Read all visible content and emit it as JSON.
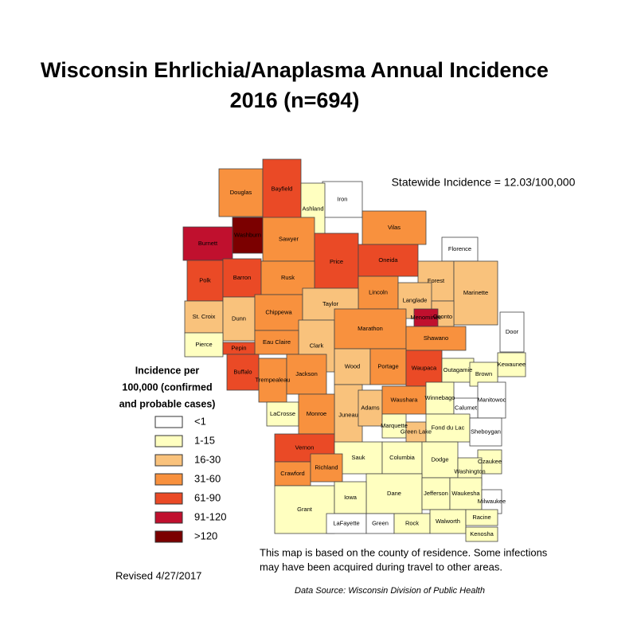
{
  "title": [
    "Wisconsin Ehrlichia/Anaplasma Annual Incidence",
    "2016 (n=694)"
  ],
  "statewide": "Statewide Incidence = 12.03/100,000",
  "legend": {
    "title": [
      "Incidence per",
      "100,000 (confirmed",
      "and probable cases)"
    ],
    "items": [
      {
        "label": "<1",
        "color": "#ffffff"
      },
      {
        "label": "1-15",
        "color": "#ffffc0"
      },
      {
        "label": "16-30",
        "color": "#f9c27c"
      },
      {
        "label": "31-60",
        "color": "#f8913e"
      },
      {
        "label": "61-90",
        "color": "#ea4a26"
      },
      {
        "label": "91-120",
        "color": "#c0102e"
      },
      {
        "label": ">120",
        "color": "#7b0000"
      }
    ]
  },
  "counties": [
    {
      "name": "Douglas",
      "class": 3
    },
    {
      "name": "Bayfield",
      "class": 4
    },
    {
      "name": "Iron",
      "class": 0
    },
    {
      "name": "Ashland",
      "class": 1
    },
    {
      "name": "Washburn",
      "class": 6
    },
    {
      "name": "Sawyer",
      "class": 3
    },
    {
      "name": "Burnett",
      "class": 5
    },
    {
      "name": "Price",
      "class": 4
    },
    {
      "name": "Vilas",
      "class": 3
    },
    {
      "name": "Oneida",
      "class": 4
    },
    {
      "name": "Florence",
      "class": 0
    },
    {
      "name": "Forest",
      "class": 2
    },
    {
      "name": "Marinette",
      "class": 2
    },
    {
      "name": "Polk",
      "class": 4
    },
    {
      "name": "Barron",
      "class": 4
    },
    {
      "name": "Rusk",
      "class": 3
    },
    {
      "name": "Lincoln",
      "class": 3
    },
    {
      "name": "Langlade",
      "class": 2
    },
    {
      "name": "Oconto",
      "class": 2
    },
    {
      "name": "St. Croix",
      "class": 2
    },
    {
      "name": "Dunn",
      "class": 2
    },
    {
      "name": "Chippewa",
      "class": 3
    },
    {
      "name": "Taylor",
      "class": 2
    },
    {
      "name": "Menominee",
      "class": 5
    },
    {
      "name": "Clark",
      "class": 2
    },
    {
      "name": "Marathon",
      "class": 3
    },
    {
      "name": "Pierce",
      "class": 1
    },
    {
      "name": "Eau Claire",
      "class": 3
    },
    {
      "name": "Shawano",
      "class": 3
    },
    {
      "name": "Door",
      "class": 0
    },
    {
      "name": "Pepin",
      "class": 4
    },
    {
      "name": "Buffalo",
      "class": 4
    },
    {
      "name": "Wood",
      "class": 2
    },
    {
      "name": "Portage",
      "class": 3
    },
    {
      "name": "Waupaca",
      "class": 4
    },
    {
      "name": "Kewaunee",
      "class": 1
    },
    {
      "name": "Outagamie",
      "class": 1
    },
    {
      "name": "Brown",
      "class": 1
    },
    {
      "name": "Trempealeau",
      "class": 3
    },
    {
      "name": "Jackson",
      "class": 3
    },
    {
      "name": "Juneau",
      "class": 2
    },
    {
      "name": "Adams",
      "class": 2
    },
    {
      "name": "Waushara",
      "class": 3
    },
    {
      "name": "Winnebago",
      "class": 1
    },
    {
      "name": "Manitowoc",
      "class": 0
    },
    {
      "name": "Calumet",
      "class": 0
    },
    {
      "name": "LaCrosse",
      "class": 1
    },
    {
      "name": "Monroe",
      "class": 3
    },
    {
      "name": "Marquette",
      "class": 1
    },
    {
      "name": "Green Lake",
      "class": 2
    },
    {
      "name": "Fond du Lac",
      "class": 1
    },
    {
      "name": "Sheboygan",
      "class": 0
    },
    {
      "name": "Vernon",
      "class": 4
    },
    {
      "name": "Sauk",
      "class": 1
    },
    {
      "name": "Columbia",
      "class": 1
    },
    {
      "name": "Dodge",
      "class": 1
    },
    {
      "name": "Ozaukee",
      "class": 1
    },
    {
      "name": "Crawford",
      "class": 3
    },
    {
      "name": "Richland",
      "class": 3
    },
    {
      "name": "Washington",
      "class": 1
    },
    {
      "name": "Dane",
      "class": 1
    },
    {
      "name": "Jefferson",
      "class": 1
    },
    {
      "name": "Waukesha",
      "class": 1
    },
    {
      "name": "Grant",
      "class": 1
    },
    {
      "name": "Iowa",
      "class": 1
    },
    {
      "name": "Milwaukee",
      "class": 0
    },
    {
      "name": "LaFayette",
      "class": 0
    },
    {
      "name": "Green",
      "class": 0
    },
    {
      "name": "Rock",
      "class": 1
    },
    {
      "name": "Walworth",
      "class": 1
    },
    {
      "name": "Racine",
      "class": 1
    },
    {
      "name": "Kenosha",
      "class": 1
    }
  ],
  "note": [
    "This map is based on the county of residence. Some infections",
    "may have been acquired during travel to other areas."
  ],
  "revised": "Revised 4/27/2017",
  "source": "Data Source:  Wisconsin Division of Public Health"
}
